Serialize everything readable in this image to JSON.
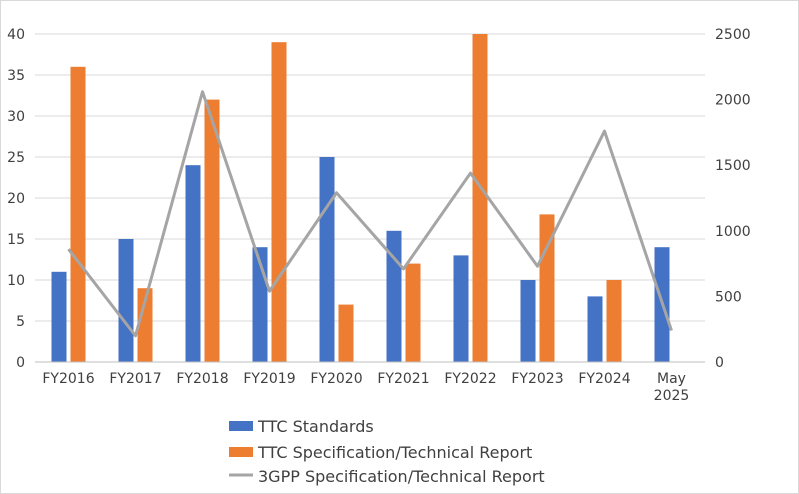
{
  "chart_data": {
    "type": "bar",
    "categories": [
      "FY2016",
      "FY2017",
      "FY2018",
      "FY2019",
      "FY2020",
      "FY2021",
      "FY2022",
      "FY2023",
      "FY2024",
      "May 2025"
    ],
    "category_lines": [
      [
        "FY2016"
      ],
      [
        "FY2017"
      ],
      [
        "FY2018"
      ],
      [
        "FY2019"
      ],
      [
        "FY2020"
      ],
      [
        "FY2021"
      ],
      [
        "FY2022"
      ],
      [
        "FY2023"
      ],
      [
        "FY2024"
      ],
      [
        "May",
        "2025"
      ]
    ],
    "series": [
      {
        "name": "TTC Standards",
        "type": "bar",
        "axis": "left",
        "color": "#4472c4",
        "values": [
          11,
          15,
          24,
          14,
          25,
          16,
          13,
          10,
          8,
          14
        ]
      },
      {
        "name": "TTC Specification/Technical Report",
        "type": "bar",
        "axis": "left",
        "color": "#ed7d31",
        "values": [
          36,
          9,
          32,
          39,
          7,
          12,
          40,
          18,
          10,
          0
        ]
      },
      {
        "name": "3GPP Specification/Technical Report",
        "type": "line",
        "axis": "right",
        "color": "#a5a5a5",
        "values": [
          860,
          200,
          2060,
          540,
          1290,
          710,
          1440,
          730,
          1760,
          240
        ]
      }
    ],
    "y_left": {
      "min": 0,
      "max": 40,
      "step": 5,
      "ticks": [
        "0",
        "5",
        "10",
        "15",
        "20",
        "25",
        "30",
        "35",
        "40"
      ]
    },
    "y_right": {
      "min": 0,
      "max": 2500,
      "step": 500,
      "ticks": [
        "0",
        "500",
        "1000",
        "1500",
        "2000",
        "2500"
      ]
    },
    "grid": true,
    "legend_position": "bottom"
  }
}
